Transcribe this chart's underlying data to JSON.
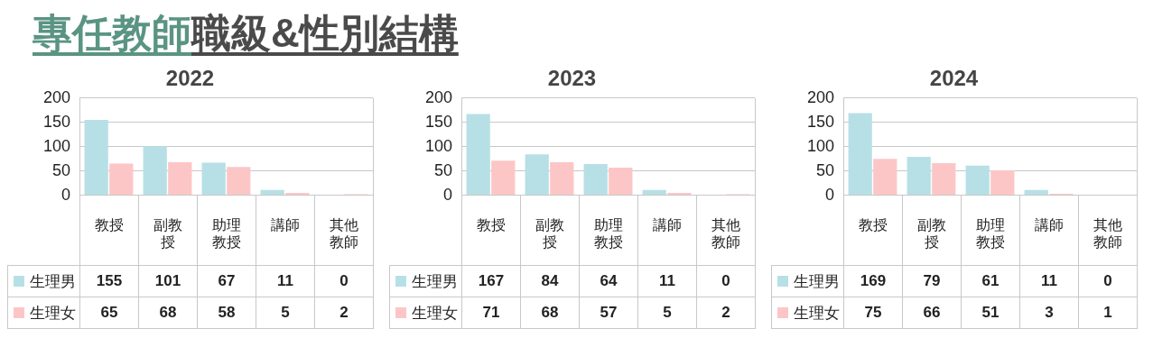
{
  "chart_data": [
    {
      "type": "other",
      "annotations": [
        "專任教師",
        "職級&性別結構"
      ]
    },
    {
      "type": "bar",
      "title": "2022",
      "categories": [
        "教授",
        "副教授",
        "助理教授",
        "講師",
        "其他教師"
      ],
      "series": [
        {
          "name": "生理男",
          "color": "#b7e0e6",
          "values": [
            155,
            101,
            67,
            11,
            0
          ]
        },
        {
          "name": "生理女",
          "color": "#fdc6c6",
          "values": [
            65,
            68,
            58,
            5,
            2
          ]
        }
      ],
      "ylim": [
        0,
        200
      ],
      "yticks": [
        0,
        50,
        100,
        150,
        200
      ],
      "grid": "y",
      "legend": "bottom left",
      "data_labels": true
    },
    {
      "type": "bar",
      "title": "2023",
      "categories": [
        "教授",
        "副教授",
        "助理教授",
        "講師",
        "其他教師"
      ],
      "series": [
        {
          "name": "生理男",
          "color": "#b7e0e6",
          "values": [
            167,
            84,
            64,
            11,
            0
          ]
        },
        {
          "name": "生理女",
          "color": "#fdc6c6",
          "values": [
            71,
            68,
            57,
            5,
            2
          ]
        }
      ],
      "ylim": [
        0,
        200
      ],
      "yticks": [
        0,
        50,
        100,
        150,
        200
      ],
      "grid": "y",
      "legend": "bottom left",
      "data_labels": true
    },
    {
      "type": "bar",
      "title": "2024",
      "categories": [
        "教授",
        "副教授",
        "助理教授",
        "講師",
        "其他教師"
      ],
      "series": [
        {
          "name": "生理男",
          "color": "#b7e0e6",
          "values": [
            169,
            79,
            61,
            11,
            0
          ]
        },
        {
          "name": "生理女",
          "color": "#fdc6c6",
          "values": [
            75,
            66,
            51,
            3,
            1
          ]
        }
      ],
      "ylim": [
        0,
        200
      ],
      "yticks": [
        0,
        50,
        100,
        150,
        200
      ],
      "grid": "y",
      "legend": "bottom left",
      "data_labels": true
    }
  ]
}
